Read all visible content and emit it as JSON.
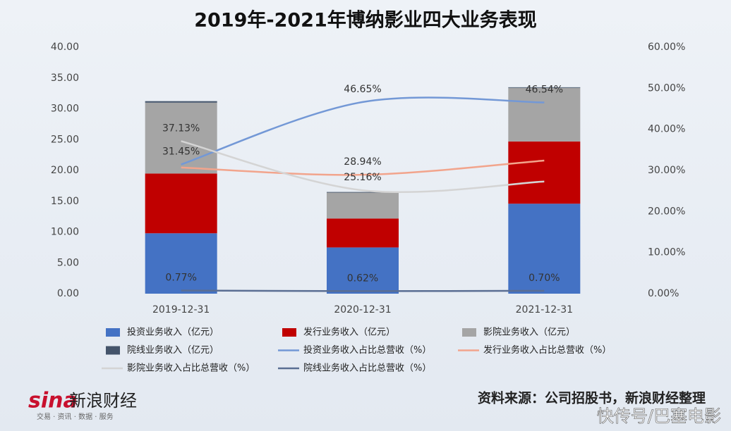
{
  "chart_data": {
    "type": "bar",
    "title": "2019年-2021年博纳影业四大业务表现",
    "categories": [
      "2019-12-31",
      "2020-12-31",
      "2021-12-31"
    ],
    "ylim": [
      0,
      40
    ],
    "yticks": [
      {
        "value": 0,
        "label": "0.00"
      },
      {
        "value": 5,
        "label": "5.00"
      },
      {
        "value": 10,
        "label": "10.00"
      },
      {
        "value": 15,
        "label": "15.00"
      },
      {
        "value": 20,
        "label": "20.00"
      },
      {
        "value": 25,
        "label": "25.00"
      },
      {
        "value": 30,
        "label": "30.00"
      },
      {
        "value": 35,
        "label": "35.00"
      },
      {
        "value": 40,
        "label": "40.00"
      }
    ],
    "y2lim": [
      0,
      60
    ],
    "y2ticks": [
      {
        "value": 0,
        "label": "0.00%"
      },
      {
        "value": 10,
        "label": "10.00%"
      },
      {
        "value": 20,
        "label": "20.00%"
      },
      {
        "value": 30,
        "label": "30.00%"
      },
      {
        "value": 40,
        "label": "40.00%"
      },
      {
        "value": 50,
        "label": "50.00%"
      },
      {
        "value": 60,
        "label": "60.00%"
      }
    ],
    "series": [
      {
        "name": "投资业务收入（亿元）",
        "type": "bar",
        "color": "#4472c4",
        "values": [
          9.8,
          7.5,
          14.6
        ]
      },
      {
        "name": "发行业务收入（亿元）",
        "type": "bar",
        "color": "#c00000",
        "values": [
          9.7,
          4.7,
          10.1
        ]
      },
      {
        "name": "影院业务收入（亿元）",
        "type": "bar",
        "color": "#a5a5a5",
        "values": [
          11.5,
          4.2,
          8.7
        ]
      },
      {
        "name": "院线业务收入（亿元）",
        "type": "bar",
        "color": "#44546a",
        "values": [
          0.24,
          0.1,
          0.1
        ]
      },
      {
        "name": "投资业务收入占比总营收（%）",
        "type": "line",
        "axis": "y2",
        "color": "#7398d6",
        "values": [
          31.45,
          46.65,
          46.54
        ],
        "value_labels": [
          "31.45%",
          "46.65%",
          "46.54%"
        ]
      },
      {
        "name": "发行业务收入占比总营收（%）",
        "type": "line",
        "axis": "y2",
        "color": "#f2a48c",
        "values": [
          30.7,
          28.94,
          32.4
        ],
        "value_labels": [
          null,
          "28.94%",
          null
        ]
      },
      {
        "name": "影院业务收入占比总营收（%）",
        "type": "line",
        "axis": "y2",
        "color": "#d4d4d4",
        "values": [
          37.13,
          25.16,
          27.3
        ],
        "value_labels": [
          "37.13%",
          "25.16%",
          null
        ]
      },
      {
        "name": "院线业务收入占比总营收（%）",
        "type": "line",
        "axis": "y2",
        "color": "#5a6e93",
        "values": [
          0.77,
          0.62,
          0.7
        ],
        "value_labels": [
          "0.77%",
          "0.62%",
          "0.70%"
        ]
      }
    ]
  },
  "footer": {
    "logo": "sina",
    "brand": "新浪财经",
    "tagline": "交易 · 资讯 · 数据 · 服务",
    "source": "资料来源：公司招股书，新浪财经整理",
    "watermark": "快传号/巴塞电影"
  }
}
